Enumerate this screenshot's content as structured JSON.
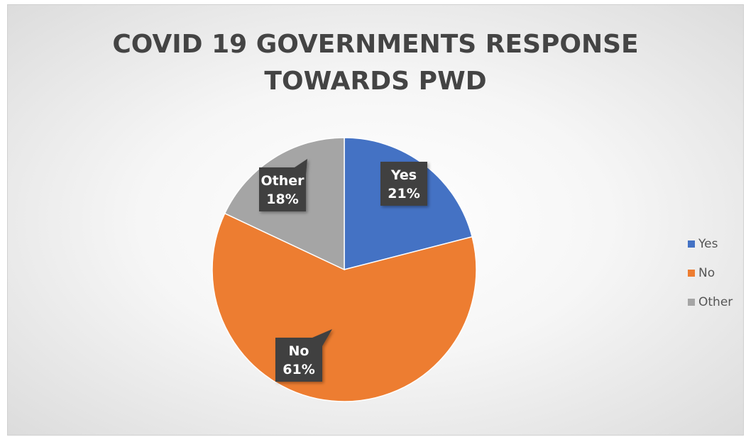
{
  "chart_data": {
    "type": "pie",
    "title_lines": [
      "COVID 19 GOVERNMENTS RESPONSE",
      "TOWARDS PWD"
    ],
    "slices": [
      {
        "name": "Yes",
        "value": 21,
        "label": "21%",
        "color": "#4472c4"
      },
      {
        "name": "No",
        "value": 61,
        "label": "61%",
        "color": "#ed7d31"
      },
      {
        "name": "Other",
        "value": 18,
        "label": "18%",
        "color": "#a5a5a5"
      }
    ],
    "legend_position": "right",
    "start_angle_deg": 0,
    "direction": "clockwise"
  }
}
